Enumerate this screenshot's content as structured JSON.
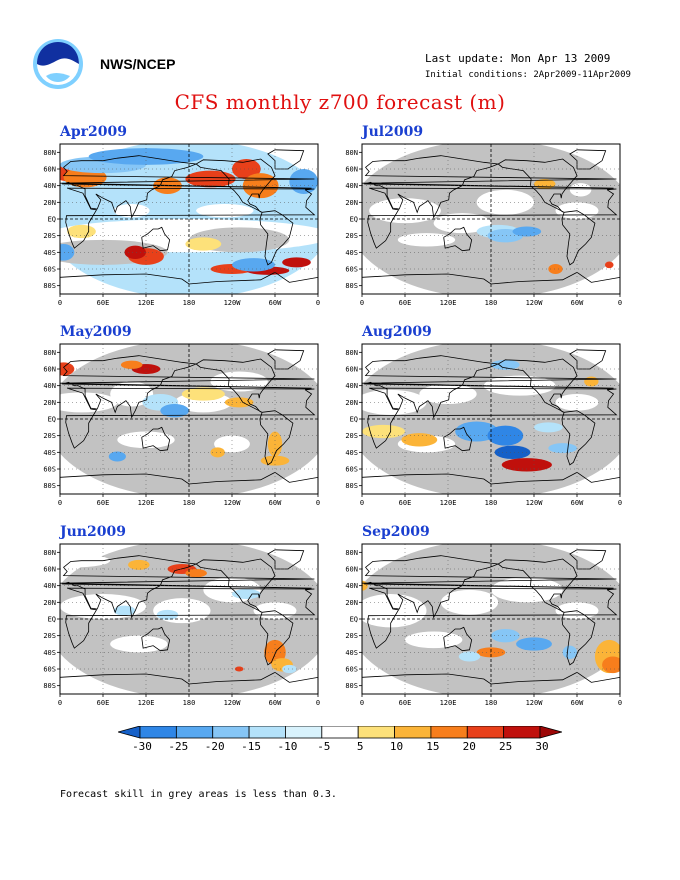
{
  "header": {
    "org": "NWS/NCEP",
    "last_update": "Last update: Mon Apr 13 2009",
    "initial_conditions": "Initial conditions: 2Apr2009-11Apr2009"
  },
  "title": "CFS monthly z700 forecast (m)",
  "axes": {
    "lat_ticks": [
      "80N",
      "60N",
      "40N",
      "20N",
      "EQ",
      "20S",
      "40S",
      "60S",
      "80S"
    ],
    "lon_ticks": [
      "0",
      "60E",
      "120E",
      "180",
      "120W",
      "60W",
      "0"
    ]
  },
  "panels": [
    {
      "label": "Apr2009"
    },
    {
      "label": "Jul2009"
    },
    {
      "label": "May2009"
    },
    {
      "label": "Aug2009"
    },
    {
      "label": "Jun2009"
    },
    {
      "label": "Sep2009"
    }
  ],
  "colorbar": {
    "ticks": [
      "-30",
      "-25",
      "-20",
      "-15",
      "-10",
      "-5",
      "5",
      "10",
      "15",
      "20",
      "25",
      "30"
    ],
    "colors": [
      "#1560c8",
      "#2f86e6",
      "#58a8f0",
      "#86c6f6",
      "#b4e2fa",
      "#d8f2fc",
      "#ffffff",
      "#fde17a",
      "#fbb438",
      "#f77e1c",
      "#e8401a",
      "#c0100c",
      "#9c0606"
    ]
  },
  "footnote": "Forecast skill in grey areas is less than 0.3."
}
